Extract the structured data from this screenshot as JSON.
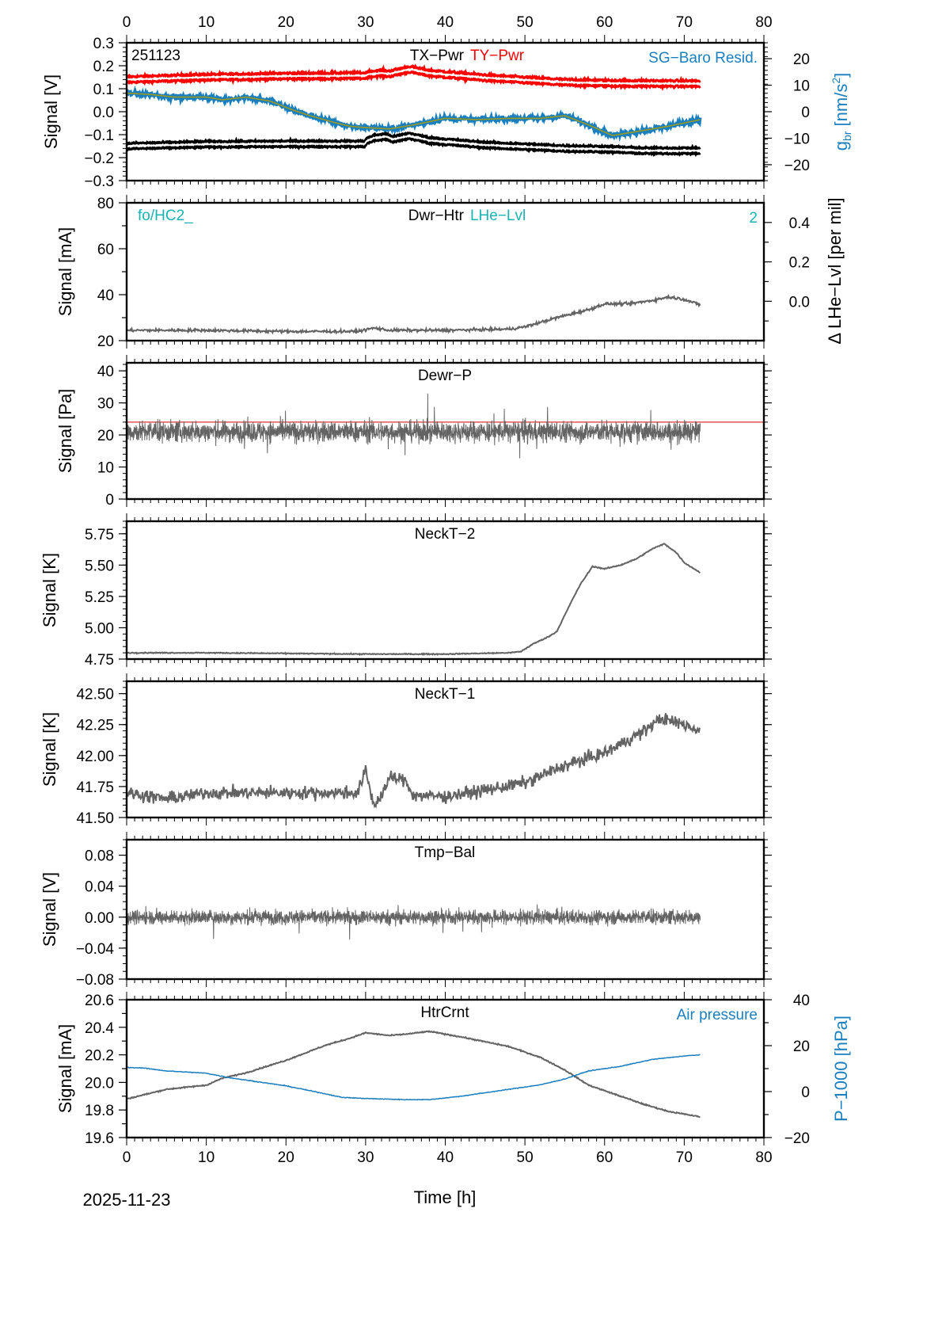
{
  "chart_data": {
    "type": "line",
    "date_label": "2025-11-23",
    "xlabel": "Time [h]",
    "xlim": [
      0,
      80
    ],
    "xticks": [
      0,
      10,
      20,
      30,
      40,
      50,
      60,
      70,
      80
    ],
    "panels": [
      {
        "id": "tilt-power",
        "ylabel": "Signal [V]",
        "ylim": [
          -0.3,
          0.3
        ],
        "yticks": [
          -0.3,
          -0.2,
          -0.1,
          0.0,
          0.1,
          0.2,
          0.3
        ],
        "ytick_labels": [
          "−0.3",
          "−0.2",
          "−0.1",
          "0.0",
          "0.1",
          "0.2",
          "0.3"
        ],
        "corner_label": "251123",
        "title_parts": [
          {
            "text": "TX−Pwr",
            "color": "#000000"
          },
          {
            "text": "TY−Pwr",
            "color": "#ff0000"
          }
        ],
        "right_label": {
          "text": "SG−Baro Resid.",
          "color": "#1a7fbf"
        },
        "right_axis": {
          "label": "g_br [nm/s²]",
          "label_main": "g",
          "label_sub": "br",
          "label_rest": " [nm/s",
          "label_sup": "2",
          "label_end": "]",
          "color": "#1a7fbf",
          "ylim": [
            -26,
            26
          ],
          "yticks": [
            -20,
            -10,
            0,
            10,
            20
          ],
          "ytick_labels": [
            "−20",
            "−10",
            "0",
            "10",
            "20"
          ]
        },
        "series": [
          {
            "name": "TY-Pwr",
            "color": "#ff0000",
            "style": "double",
            "noise": 0.005,
            "x": [
              0,
              10,
              20,
              30,
              30.3,
              32,
              33,
              35.5,
              38,
              45,
              55,
              60,
              65,
              72
            ],
            "y": [
              0.14,
              0.15,
              0.155,
              0.157,
              0.163,
              0.168,
              0.165,
              0.185,
              0.168,
              0.148,
              0.128,
              0.124,
              0.123,
              0.122
            ]
          },
          {
            "name": "SG-Baro Resid.",
            "color": "#1a7fbf",
            "axis": "right",
            "smooth_color": "#9a9a20",
            "noise": 0.9,
            "x": [
              0,
              3,
              6,
              10,
              12,
              15,
              18,
              21,
              23,
              26,
              28,
              30,
              33,
              36,
              40,
              44,
              48,
              52,
              55,
              58,
              61,
              64,
              68,
              72
            ],
            "y": [
              7,
              6.5,
              5.5,
              5.5,
              4.5,
              5.5,
              4,
              0.5,
              -1.5,
              -4,
              -5.5,
              -6,
              -6.5,
              -5,
              -2.5,
              -3,
              -2.5,
              -2.5,
              -1.5,
              -5,
              -9,
              -7.5,
              -5.5,
              -3
            ]
          },
          {
            "name": "TX-Pwr",
            "color": "#000000",
            "style": "double",
            "noise": 0.004,
            "x": [
              0,
              10,
              20,
              29.9,
              30.1,
              31,
              32.5,
              33.5,
              35.5,
              38,
              45,
              55,
              60,
              65,
              72
            ],
            "y": [
              -0.15,
              -0.142,
              -0.14,
              -0.14,
              -0.128,
              -0.115,
              -0.108,
              -0.12,
              -0.105,
              -0.125,
              -0.145,
              -0.16,
              -0.163,
              -0.17,
              -0.17
            ]
          }
        ]
      },
      {
        "id": "dewar-heater",
        "ylabel": "Signal [mA]",
        "ylim": [
          20,
          80
        ],
        "yticks": [
          20,
          30,
          40,
          50,
          60,
          70,
          80
        ],
        "ytick_labels": [
          "20",
          "",
          "40",
          "",
          "60",
          "",
          "80"
        ],
        "corner_label": "fo/HC2_",
        "corner_color": "#19b3b3",
        "title_parts": [
          {
            "text": "Dwr−Htr",
            "color": "#000000"
          },
          {
            "text": "LHe−Lvl",
            "color": "#19b3b3"
          }
        ],
        "right_label": {
          "text": "2",
          "color": "#19b3b3"
        },
        "right_axis": {
          "label": "Δ LHe−Lvl [per mil]",
          "color": "#000000",
          "ylim": [
            -0.2,
            0.5
          ],
          "yticks": [
            -0.1,
            0.0,
            0.1,
            0.2,
            0.3,
            0.4
          ],
          "ytick_labels": [
            "",
            "0.0",
            "",
            "0.2",
            "",
            "0.4"
          ]
        },
        "series": [
          {
            "name": "Dwr-Htr",
            "color": "#636363",
            "noise": 0.6,
            "x": [
              0,
              10,
              20,
              29,
              31,
              33,
              40,
              48,
              50,
              54,
              58,
              60,
              63,
              66,
              68,
              70,
              72
            ],
            "y": [
              24.5,
              24.5,
              24,
              24,
              25.5,
              24.5,
              24.5,
              25,
              26,
              30,
              33.5,
              36,
              36,
              37.5,
              39,
              38,
              35.5
            ]
          }
        ]
      },
      {
        "id": "dewar-pressure",
        "ylabel": "Signal [Pa]",
        "ylim": [
          0,
          42.5
        ],
        "yticks": [
          0,
          10,
          20,
          30,
          40
        ],
        "ytick_labels": [
          "0",
          "10",
          "20",
          "30",
          "40"
        ],
        "title_parts": [
          {
            "text": "Dewr−P",
            "color": "#000000"
          }
        ],
        "reference_line": {
          "y": 24,
          "color": "#e03030"
        },
        "series": [
          {
            "name": "Dewr-P",
            "color": "#636363",
            "noise": 3.2,
            "spiky": true,
            "x": [
              0,
              72
            ],
            "y": [
              21,
              21
            ]
          }
        ]
      },
      {
        "id": "neck-t2",
        "ylabel": "Signal [K]",
        "ylim": [
          4.75,
          5.85
        ],
        "yticks": [
          4.75,
          5.0,
          5.25,
          5.5,
          5.75
        ],
        "ytick_labels": [
          "4.75",
          "5.00",
          "5.25",
          "5.50",
          "5.75"
        ],
        "title_parts": [
          {
            "text": "NeckT−2",
            "color": "#000000"
          }
        ],
        "series": [
          {
            "name": "NeckT-2",
            "color": "#636363",
            "noise": 0.004,
            "x": [
              0,
              10,
              20,
              30,
              40,
              48,
              49.5,
              51,
              53,
              54,
              55,
              56,
              57,
              58.5,
              60,
              62,
              64,
              66,
              67.5,
              69,
              70,
              72
            ],
            "y": [
              4.8,
              4.8,
              4.795,
              4.79,
              4.79,
              4.8,
              4.81,
              4.87,
              4.93,
              4.97,
              5.1,
              5.23,
              5.35,
              5.49,
              5.47,
              5.5,
              5.55,
              5.63,
              5.67,
              5.6,
              5.52,
              5.44
            ]
          }
        ]
      },
      {
        "id": "neck-t1",
        "ylabel": "Signal [K]",
        "ylim": [
          41.5,
          42.6
        ],
        "yticks": [
          41.5,
          41.75,
          42.0,
          42.25,
          42.5
        ],
        "ytick_labels": [
          "41.50",
          "41.75",
          "42.00",
          "42.25",
          "42.50"
        ],
        "title_parts": [
          {
            "text": "NeckT−1",
            "color": "#000000"
          }
        ],
        "series": [
          {
            "name": "NeckT-1",
            "color": "#636363",
            "noise": 0.05,
            "x": [
              0,
              5,
              10,
              20,
              29,
              30,
              31,
              32,
              33,
              35,
              36,
              40,
              45,
              50,
              55,
              60,
              65,
              67,
              70,
              72
            ],
            "y": [
              41.7,
              41.65,
              41.7,
              41.7,
              41.7,
              41.88,
              41.6,
              41.68,
              41.82,
              41.8,
              41.68,
              41.67,
              41.72,
              41.78,
              41.92,
              42.02,
              42.2,
              42.3,
              42.25,
              42.2
            ]
          }
        ]
      },
      {
        "id": "tmp-balance",
        "ylabel": "Signal [V]",
        "ylim": [
          -0.08,
          0.1
        ],
        "yticks": [
          -0.08,
          -0.04,
          0.0,
          0.04,
          0.08
        ],
        "ytick_labels": [
          "−0.08",
          "−0.04",
          "0.00",
          "0.04",
          "0.08"
        ],
        "title_parts": [
          {
            "text": "Tmp−Bal",
            "color": "#000000"
          }
        ],
        "series": [
          {
            "name": "Tmp-Bal",
            "color": "#636363",
            "noise": 0.009,
            "spiky": true,
            "x": [
              0,
              72
            ],
            "y": [
              0.0,
              0.0
            ]
          }
        ]
      },
      {
        "id": "heater-current",
        "ylabel": "Signal [mA]",
        "ylim": [
          19.6,
          20.6
        ],
        "yticks": [
          19.6,
          19.7,
          19.8,
          19.9,
          20.0,
          20.1,
          20.2,
          20.3,
          20.4,
          20.5,
          20.6
        ],
        "ytick_labels": [
          "19.6",
          "",
          "19.8",
          "",
          "20.0",
          "",
          "20.2",
          "",
          "20.4",
          "",
          "20.6"
        ],
        "title_parts": [
          {
            "text": "HtrCrnt",
            "color": "#000000"
          }
        ],
        "right_label": {
          "text": "Air pressure",
          "color": "#1a7fbf"
        },
        "right_axis": {
          "label": "P−1000 [hPa]",
          "color": "#1a7fbf",
          "ylim": [
            -20,
            40
          ],
          "yticks": [
            -20,
            -10,
            0,
            10,
            20,
            30,
            40
          ],
          "ytick_labels": [
            "−20",
            "",
            "0",
            "",
            "20",
            "",
            "40"
          ]
        },
        "series": [
          {
            "name": "HtrCrnt",
            "color": "#636363",
            "noise": 0.004,
            "x": [
              0,
              5,
              10,
              12,
              15,
              20,
              25,
              28,
              30,
              33,
              35,
              38,
              42,
              48,
              52,
              55,
              58,
              62,
              65,
              68,
              72
            ],
            "y": [
              19.88,
              19.95,
              19.98,
              20.03,
              20.07,
              20.16,
              20.27,
              20.32,
              20.36,
              20.34,
              20.35,
              20.37,
              20.33,
              20.26,
              20.18,
              20.09,
              19.98,
              19.9,
              19.84,
              19.79,
              19.75
            ]
          },
          {
            "name": "Air pressure",
            "color": "#1a7fbf",
            "axis": "right",
            "noise": 0.15,
            "x": [
              0,
              2,
              5,
              10,
              13,
              17,
              20,
              25,
              27,
              30,
              35,
              38,
              42,
              48,
              52,
              55,
              58,
              62,
              66,
              70,
              72
            ],
            "y": [
              10.5,
              10.3,
              9,
              8,
              6,
              4,
              2.5,
              -1,
              -2.5,
              -3,
              -3.5,
              -3.5,
              -2,
              1,
              3,
              5.5,
              9,
              11,
              14,
              15.5,
              16
            ]
          }
        ]
      }
    ]
  }
}
